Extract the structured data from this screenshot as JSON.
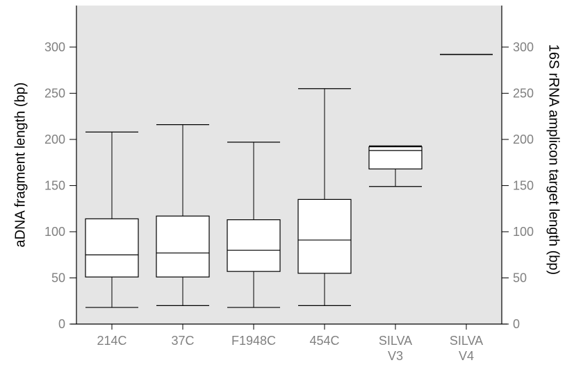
{
  "chart_data": {
    "type": "box",
    "categories": [
      "214C",
      "37C",
      "F1948C",
      "454C",
      "SILVA\nV3",
      "SILVA\nV4"
    ],
    "boxes": [
      {
        "category": "214C",
        "min": 18,
        "q1": 51,
        "median": 75,
        "q3": 114,
        "max": 208
      },
      {
        "category": "37C",
        "min": 20,
        "q1": 51,
        "median": 77,
        "q3": 117,
        "max": 216
      },
      {
        "category": "F1948C",
        "min": 18,
        "q1": 57,
        "median": 80,
        "q3": 113,
        "max": 197
      },
      {
        "category": "454C",
        "min": 20,
        "q1": 55,
        "median": 91,
        "q3": 135,
        "max": 255
      },
      {
        "category": "SILVA\nV3",
        "min": 149,
        "q1": 168,
        "median": 188,
        "q3": 192,
        "max": 193
      },
      {
        "category": "SILVA\nV4",
        "min": 292,
        "q1": 292,
        "median": 292,
        "q3": 292,
        "max": 292
      }
    ],
    "ylabel": "aDNA fragment length (bp)",
    "ylabel_right": "16S rRNA amplicon target length (bp)",
    "ylim": [
      0,
      345
    ],
    "yticks": [
      0,
      50,
      100,
      150,
      200,
      250,
      300
    ],
    "grid": false,
    "legend": "none",
    "colors": {
      "panel": "#e5e5e5",
      "box_fill": "#ffffff",
      "stroke": "#000000",
      "tick_text": "#808080"
    }
  }
}
